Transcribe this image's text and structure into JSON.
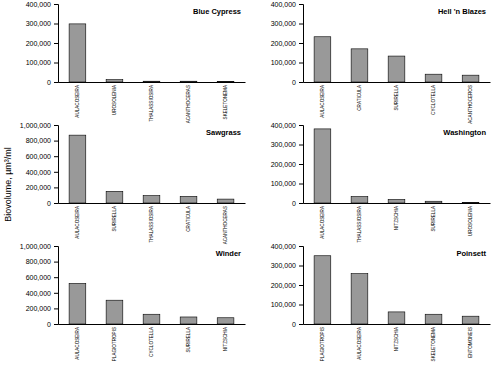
{
  "y_label": "Biovolume, µm³/ml",
  "chart_data": [
    {
      "type": "bar",
      "title": "Blue Cypress",
      "categories": [
        "AULACOSEIRA",
        "UROSOLENIA",
        "THALASSIOSIRA",
        "ACANTHOCERAS",
        "SKELETONEMA"
      ],
      "values": [
        298000,
        12000,
        4000,
        4000,
        3000
      ],
      "color": "#999999",
      "ylim": [
        0,
        400000
      ],
      "yticks": [
        0,
        {
          "value": 100000,
          "label": "100,000"
        },
        {
          "value": 200000,
          "label": "200,000"
        },
        {
          "value": 300000,
          "label": "300,000"
        },
        {
          "value": 400000,
          "label": "400,000"
        }
      ]
    },
    {
      "type": "bar",
      "title": "Hell 'n Blazes",
      "categories": [
        "AULACOSEIRA",
        "CRATICULA",
        "SURIRELLA",
        "CYCLOTELLA",
        "ACANTHOCEROS"
      ],
      "values": [
        232000,
        170000,
        133000,
        40000,
        35000
      ],
      "color": "#999999",
      "ylim": [
        0,
        400000
      ],
      "yticks": [
        0,
        {
          "value": 100000,
          "label": "100,000"
        },
        {
          "value": 200000,
          "label": "200,000"
        },
        {
          "value": 300000,
          "label": "300,000"
        },
        {
          "value": 400000,
          "label": "400,000"
        }
      ]
    },
    {
      "type": "bar",
      "title": "Sawgrass",
      "categories": [
        "AULACOSEIRA",
        "SURIRELLA",
        "THALASSIOSIRA",
        "CRATICULA",
        "ACANTHOCERAS"
      ],
      "values": [
        870000,
        150000,
        95000,
        85000,
        50000
      ],
      "color": "#999999",
      "ylim": [
        0,
        1000000
      ],
      "yticks": [
        0,
        {
          "value": 200000,
          "label": "200,000"
        },
        {
          "value": 400000,
          "label": "400,000"
        },
        {
          "value": 600000,
          "label": "600,000"
        },
        {
          "value": 800000,
          "label": "800,000"
        },
        {
          "value": 1000000,
          "label": "1,000,000"
        }
      ]
    },
    {
      "type": "bar",
      "title": "Washington",
      "categories": [
        "AULACOSEIRA",
        "THALASSIOSIRA",
        "NITZSCHIA",
        "SURIRELLA",
        "UROSOLENIA"
      ],
      "values": [
        380000,
        33000,
        18000,
        9000,
        3000
      ],
      "color": "#999999",
      "ylim": [
        0,
        400000
      ],
      "yticks": [
        0,
        {
          "value": 100000,
          "label": "100,000"
        },
        {
          "value": 200000,
          "label": "200,000"
        },
        {
          "value": 300000,
          "label": "300,000"
        },
        {
          "value": 400000,
          "label": "400,000"
        }
      ]
    },
    {
      "type": "bar",
      "title": "Winder",
      "categories": [
        "AULACOSEIRA",
        "PLAGIOTROPIS",
        "CYCLOTELLA",
        "SURIRELLA",
        "NITZSCHIA"
      ],
      "values": [
        520000,
        305000,
        125000,
        90000,
        80000
      ],
      "color": "#999999",
      "ylim": [
        0,
        1000000
      ],
      "yticks": [
        0,
        {
          "value": 200000,
          "label": "200,000"
        },
        {
          "value": 400000,
          "label": "400,000"
        },
        {
          "value": 600000,
          "label": "600,000"
        },
        {
          "value": 800000,
          "label": "800,000"
        },
        {
          "value": 1000000,
          "label": "1,000,000"
        }
      ]
    },
    {
      "type": "bar",
      "title": "Poinsett",
      "categories": [
        "PLAGIOTROPIS",
        "AULACOSEIRA",
        "NITZSCHIA",
        "SKELETONEMA",
        "ENTOMONEIS"
      ],
      "values": [
        350000,
        258000,
        62000,
        50000,
        40000
      ],
      "color": "#999999",
      "ylim": [
        0,
        400000
      ],
      "yticks": [
        0,
        {
          "value": 100000,
          "label": "100,000"
        },
        {
          "value": 200000,
          "label": "200,000"
        },
        {
          "value": 300000,
          "label": "300,000"
        },
        {
          "value": 400000,
          "label": "400,000"
        }
      ]
    }
  ]
}
